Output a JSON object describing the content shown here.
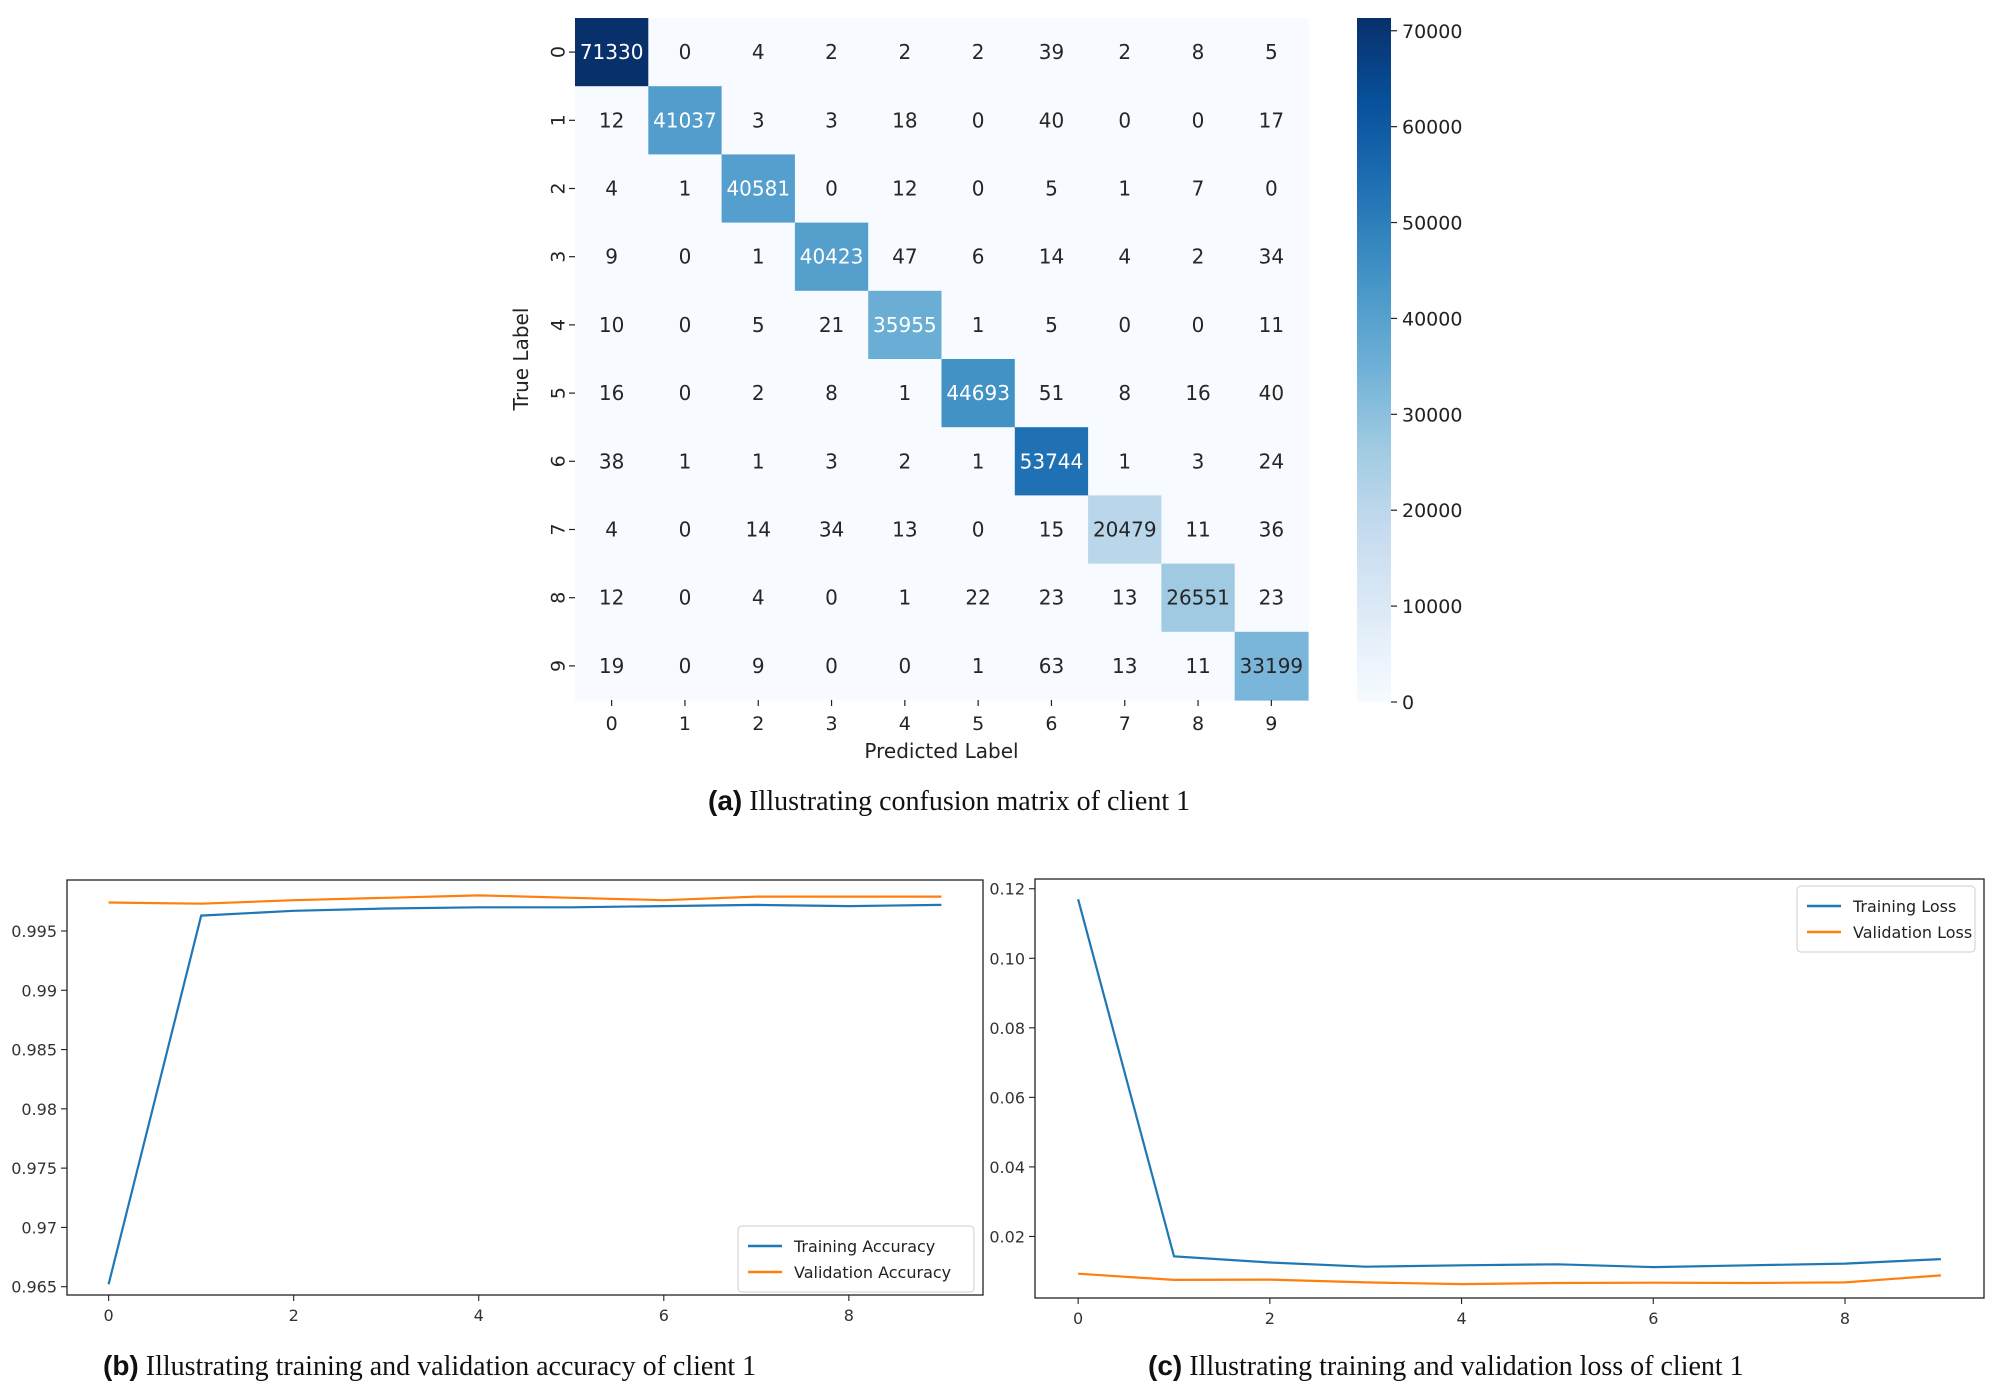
{
  "captions": {
    "a": {
      "tag": "(a)",
      "text": " Illustrating confusion matrix of client 1"
    },
    "b": {
      "tag": "(b)",
      "text": " Illustrating training and validation accuracy of client 1"
    },
    "c": {
      "tag": "(c)",
      "text": " Illustrating training and validation loss of client 1"
    }
  },
  "chart_data": [
    {
      "type": "heatmap",
      "title": "",
      "xlabel": "Predicted Label",
      "ylabel": "True Label",
      "x_categories": [
        "0",
        "1",
        "2",
        "3",
        "4",
        "5",
        "6",
        "7",
        "8",
        "9"
      ],
      "y_categories": [
        "0",
        "1",
        "2",
        "3",
        "4",
        "5",
        "6",
        "7",
        "8",
        "9"
      ],
      "matrix": [
        [
          71330,
          0,
          4,
          2,
          2,
          2,
          39,
          2,
          8,
          5
        ],
        [
          12,
          41037,
          3,
          3,
          18,
          0,
          40,
          0,
          0,
          17
        ],
        [
          4,
          1,
          40581,
          0,
          12,
          0,
          5,
          1,
          7,
          0
        ],
        [
          9,
          0,
          1,
          40423,
          47,
          6,
          14,
          4,
          2,
          34
        ],
        [
          10,
          0,
          5,
          21,
          35955,
          1,
          5,
          0,
          0,
          11
        ],
        [
          16,
          0,
          2,
          8,
          1,
          44693,
          51,
          8,
          16,
          40
        ],
        [
          38,
          1,
          1,
          3,
          2,
          1,
          53744,
          1,
          3,
          24
        ],
        [
          4,
          0,
          14,
          34,
          13,
          0,
          15,
          20479,
          11,
          36
        ],
        [
          12,
          0,
          4,
          0,
          1,
          22,
          23,
          13,
          26551,
          23
        ],
        [
          19,
          0,
          9,
          0,
          0,
          1,
          63,
          13,
          11,
          33199
        ]
      ],
      "colorbar": {
        "min": 0,
        "max": 71330,
        "ticks": [
          0,
          10000,
          20000,
          30000,
          40000,
          50000,
          60000,
          70000
        ]
      },
      "colormap": "Blues"
    },
    {
      "type": "line",
      "title": "",
      "xlabel": "",
      "ylabel": "",
      "x": [
        0,
        1,
        2,
        3,
        4,
        5,
        6,
        7,
        8,
        9
      ],
      "xlim": [
        -0.45,
        9.45
      ],
      "ylim": [
        0.9643,
        0.9993
      ],
      "xticks": [
        0,
        2,
        4,
        6,
        8
      ],
      "yticks": [
        0.965,
        0.97,
        0.975,
        0.98,
        0.985,
        0.99,
        0.995
      ],
      "legend": "bottom-right",
      "series": [
        {
          "name": "Training Accuracy",
          "color": "#1f77b4",
          "values": [
            0.9652,
            0.9963,
            0.9967,
            0.9969,
            0.997,
            0.997,
            0.9971,
            0.9972,
            0.9971,
            0.9972
          ]
        },
        {
          "name": "Validation Accuracy",
          "color": "#ff7f0e",
          "values": [
            0.9974,
            0.9973,
            0.9976,
            0.9978,
            0.998,
            0.9978,
            0.9976,
            0.9979,
            0.9979,
            0.9979
          ]
        }
      ]
    },
    {
      "type": "line",
      "title": "",
      "xlabel": "",
      "ylabel": "",
      "x": [
        0,
        1,
        2,
        3,
        4,
        5,
        6,
        7,
        8,
        9
      ],
      "xlim": [
        -0.45,
        9.45
      ],
      "ylim": [
        0.0023,
        0.1228
      ],
      "xticks": [
        0,
        2,
        4,
        6,
        8
      ],
      "yticks": [
        0.02,
        0.04,
        0.06,
        0.08,
        0.1,
        0.12
      ],
      "ytick_labels": [
        "0.02",
        "0.04",
        "0.06",
        "0.08",
        "0.10",
        "0.12"
      ],
      "legend": "top-right",
      "series": [
        {
          "name": "Training Loss",
          "color": "#1f77b4",
          "values": [
            0.117,
            0.0143,
            0.0125,
            0.0113,
            0.0117,
            0.012,
            0.0112,
            0.0117,
            0.0122,
            0.0135
          ]
        },
        {
          "name": "Validation Loss",
          "color": "#ff7f0e",
          "values": [
            0.0093,
            0.0075,
            0.0076,
            0.0068,
            0.0063,
            0.0066,
            0.0067,
            0.0066,
            0.0068,
            0.0088
          ]
        }
      ]
    }
  ]
}
